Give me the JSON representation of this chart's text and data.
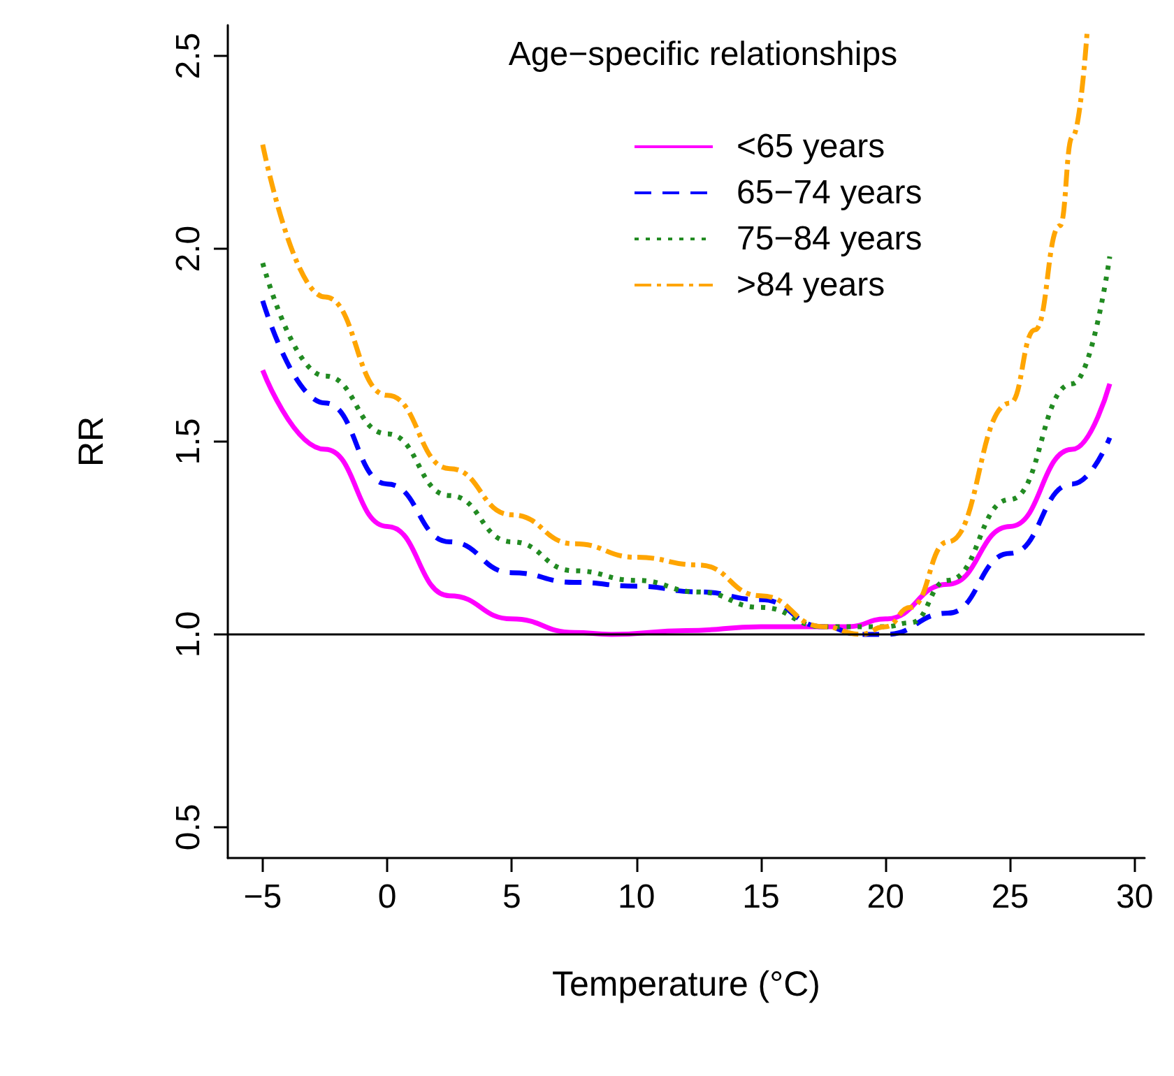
{
  "chart_data": {
    "type": "line",
    "title": "Age−specific relationships",
    "xlabel": "Temperature (°C)",
    "ylabel": "RR",
    "xlim": [
      -6.4,
      30.4
    ],
    "xticks": [
      {
        "value": -5,
        "label": "−5"
      },
      0,
      5,
      10,
      15,
      20,
      25,
      30
    ],
    "ylim": [
      0.42,
      2.58
    ],
    "yticks": [
      {
        "value": 0.5,
        "label": "0.5"
      },
      {
        "value": 1,
        "label": "1.0"
      },
      {
        "value": 1.5,
        "label": "1.5"
      },
      {
        "value": 2,
        "label": "2.0"
      },
      {
        "value": 2.5,
        "label": "2.5"
      }
    ],
    "grid": false,
    "legend": "top right",
    "marker": "none",
    "ref_lines": [
      {
        "axis": "y",
        "value": 1,
        "color": "#000000",
        "line_style": "solid"
      }
    ],
    "series": [
      {
        "name": "<65 years",
        "color": "#ff00ff",
        "line_style": "solid",
        "x": [
          -5,
          -2.5,
          0,
          2.5,
          5,
          7.5,
          9,
          12,
          15,
          17.5,
          18.5,
          20,
          22.5,
          25,
          27.5,
          29
        ],
        "values": [
          1.685,
          1.48,
          1.28,
          1.1,
          1.04,
          1.005,
          1.0,
          1.01,
          1.02,
          1.02,
          1.02,
          1.04,
          1.13,
          1.28,
          1.48,
          1.65
        ]
      },
      {
        "name": "65−74 years",
        "color": "#0000ff",
        "line_style": "dashed",
        "x": [
          -5,
          -2.5,
          0,
          2.5,
          5,
          7.5,
          10,
          12.5,
          15,
          17.5,
          19,
          20,
          22.5,
          25,
          27.5,
          29
        ],
        "values": [
          1.865,
          1.6,
          1.39,
          1.24,
          1.16,
          1.135,
          1.125,
          1.11,
          1.09,
          1.02,
          1.0,
          1.0,
          1.055,
          1.21,
          1.39,
          1.51
        ]
      },
      {
        "name": "75−84 years",
        "color": "#228b22",
        "line_style": "dotted",
        "x": [
          -5,
          -2.5,
          0,
          2.5,
          5,
          7.5,
          10,
          12.5,
          15,
          17.5,
          20,
          21,
          22.5,
          25,
          27.5,
          29
        ],
        "values": [
          1.963,
          1.67,
          1.52,
          1.36,
          1.24,
          1.165,
          1.14,
          1.11,
          1.07,
          1.02,
          1.02,
          1.03,
          1.14,
          1.35,
          1.65,
          1.98
        ]
      },
      {
        "name": ">84 years",
        "color": "#ffa500",
        "line_style": "dashdot",
        "x": [
          -5,
          -2.5,
          0,
          2.5,
          5,
          7.5,
          10,
          12.5,
          15,
          17.5,
          19,
          20,
          21,
          22.5,
          25,
          26,
          27,
          27.5,
          28.1
        ],
        "values": [
          2.27,
          1.875,
          1.62,
          1.43,
          1.31,
          1.235,
          1.2,
          1.18,
          1.1,
          1.02,
          1.0,
          1.02,
          1.07,
          1.24,
          1.6,
          1.79,
          2.06,
          2.29,
          2.57
        ]
      }
    ]
  }
}
